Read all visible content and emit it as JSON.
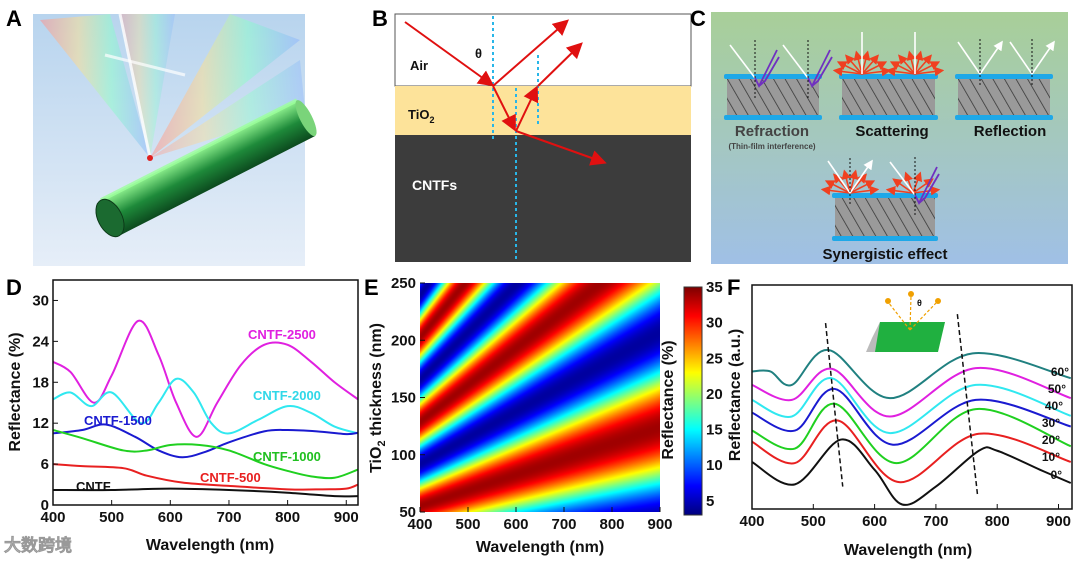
{
  "panels": {
    "A": {
      "label": "A"
    },
    "B": {
      "label": "B",
      "air": "Air",
      "theta": "θ",
      "tio2_main": "TiO",
      "tio2_sub": "2",
      "cntfs": "CNTFs"
    },
    "C": {
      "label": "C",
      "refraction": "Refraction",
      "refraction_note": "(Thin-film interference)",
      "scattering": "Scattering",
      "reflection": "Reflection",
      "synergistic": "Synergistic effect"
    },
    "D": {
      "label": "D"
    },
    "E": {
      "label": "E"
    },
    "F": {
      "label": "F",
      "inset_theta": "θ"
    }
  },
  "watermark": "大数跨境",
  "colors": {
    "magenta": "#e020e0",
    "cyan": "#30e8f0",
    "blue": "#1a1ad0",
    "green": "#20d020",
    "red": "#e82020",
    "black": "#111111",
    "teal": "#208080"
  },
  "chart_data": [
    {
      "id": "D",
      "type": "line",
      "xlabel": "Wavelength (nm)",
      "ylabel": "Reflectance (%)",
      "xlim": [
        400,
        920
      ],
      "ylim": [
        0,
        33
      ],
      "xticks": [
        400,
        500,
        600,
        700,
        800,
        900
      ],
      "yticks": [
        0,
        6,
        12,
        18,
        24,
        30
      ],
      "series": [
        {
          "name": "CNTF-2500",
          "color": "#e020e0",
          "x": [
            400,
            430,
            470,
            500,
            545,
            580,
            610,
            645,
            680,
            720,
            760,
            800,
            840,
            880,
            920
          ],
          "y": [
            21,
            19.5,
            15,
            19,
            27,
            22,
            15,
            10,
            15,
            20.5,
            23.5,
            23.5,
            21,
            18,
            15.5
          ]
        },
        {
          "name": "CNTF-2000",
          "color": "#30e8f0",
          "x": [
            400,
            430,
            465,
            500,
            550,
            580,
            610,
            640,
            670,
            700,
            750,
            800,
            840,
            880,
            920
          ],
          "y": [
            15.5,
            16.5,
            14.5,
            16.5,
            12,
            15,
            18.5,
            16.5,
            12,
            10.5,
            12.5,
            14.5,
            13.5,
            11.5,
            10.5
          ]
        },
        {
          "name": "CNTF-1500",
          "color": "#1a1ad0",
          "x": [
            400,
            450,
            490,
            540,
            580,
            620,
            660,
            700,
            760,
            800,
            850,
            900,
            920
          ],
          "y": [
            10.5,
            11,
            11.8,
            10,
            8,
            7,
            7.8,
            9.2,
            10.8,
            11,
            10.8,
            10.4,
            10.6
          ]
        },
        {
          "name": "CNTF-1000",
          "color": "#20d020",
          "x": [
            400,
            450,
            520,
            560,
            600,
            650,
            700,
            760,
            800,
            840,
            880,
            920
          ],
          "y": [
            11,
            9.8,
            8,
            8,
            8.8,
            8.8,
            8,
            6,
            5,
            4.2,
            4,
            5.2
          ]
        },
        {
          "name": "CNTF-500",
          "color": "#e82020",
          "x": [
            400,
            450,
            520,
            560,
            620,
            700,
            800,
            860,
            900,
            920
          ],
          "y": [
            6,
            5.7,
            5.4,
            4.3,
            3.3,
            2.8,
            2.3,
            2.3,
            2.4,
            3
          ]
        },
        {
          "name": "CNTF",
          "color": "#111111",
          "x": [
            400,
            500,
            600,
            700,
            800,
            880,
            920
          ],
          "y": [
            2.2,
            2.2,
            2.4,
            2.2,
            1.8,
            1.3,
            1.3
          ]
        }
      ]
    },
    {
      "id": "E",
      "type": "heatmap",
      "xlabel": "Wavelength (nm)",
      "ylabel_main": "TiO",
      "ylabel_sub": "2",
      "ylabel_rest": " thickness (nm)",
      "colorbar_label": "Reflectance (%)",
      "xlim": [
        400,
        900
      ],
      "ylim": [
        50,
        250
      ],
      "zlim": [
        3,
        35
      ],
      "xticks": [
        400,
        500,
        600,
        700,
        800,
        900
      ],
      "yticks": [
        50,
        100,
        150,
        200,
        250
      ],
      "cbticks": [
        5,
        10,
        15,
        20,
        25,
        30,
        35
      ],
      "colormap": "jet",
      "model": {
        "phase_per_thickness_over_wavelength": 5.4,
        "phase_offset": 0.24,
        "mean": 19,
        "amplitude": 15
      }
    },
    {
      "id": "F",
      "type": "line",
      "xlabel": "Wavelength (nm)",
      "ylabel": "Reflectance (a.u.)",
      "xlim": [
        400,
        922
      ],
      "ylim": [
        0,
        100
      ],
      "xticks": [
        400,
        500,
        600,
        700,
        800,
        900
      ],
      "series": [
        {
          "name": "60°",
          "color": "#208080",
          "x": [
            400,
            430,
            465,
            525,
            625,
            760,
            920
          ],
          "y": [
            61.4,
            61.4,
            55.4,
            71,
            49.5,
            69.5,
            58.4
          ]
        },
        {
          "name": "50°",
          "color": "#e020e0",
          "x": [
            400,
            465,
            530,
            625,
            765,
            920
          ],
          "y": [
            55.4,
            48.7,
            62.6,
            41.3,
            62.9,
            49.5
          ]
        },
        {
          "name": "40°",
          "color": "#30e8f0",
          "x": [
            400,
            465,
            530,
            625,
            765,
            920
          ],
          "y": [
            48.7,
            41.3,
            58.4,
            33.9,
            55.4,
            41.6
          ]
        },
        {
          "name": "30°",
          "color": "#1a1ad0",
          "x": [
            400,
            470,
            535,
            630,
            765,
            920
          ],
          "y": [
            43,
            35,
            53.6,
            28.7,
            48.7,
            36.8
          ]
        },
        {
          "name": "20°",
          "color": "#20d020",
          "x": [
            400,
            470,
            535,
            635,
            765,
            920
          ],
          "y": [
            35,
            27,
            47,
            20.5,
            44.6,
            28
          ]
        },
        {
          "name": "10°",
          "color": "#e82020",
          "x": [
            400,
            470,
            540,
            640,
            770,
            920
          ],
          "y": [
            30,
            20.5,
            39.5,
            12,
            33.6,
            21
          ]
        },
        {
          "name": "0°",
          "color": "#111111",
          "x": [
            400,
            470,
            545,
            600,
            645,
            700,
            770,
            800,
            870,
            920
          ],
          "y": [
            21,
            11,
            31,
            17.5,
            2,
            10,
            26,
            26,
            17.5,
            11.6
          ]
        }
      ],
      "guides": [
        {
          "x": [
            520,
            548
          ],
          "y": [
            83,
            10
          ]
        },
        {
          "x": [
            735,
            768
          ],
          "y": [
            87,
            6
          ]
        }
      ]
    }
  ]
}
